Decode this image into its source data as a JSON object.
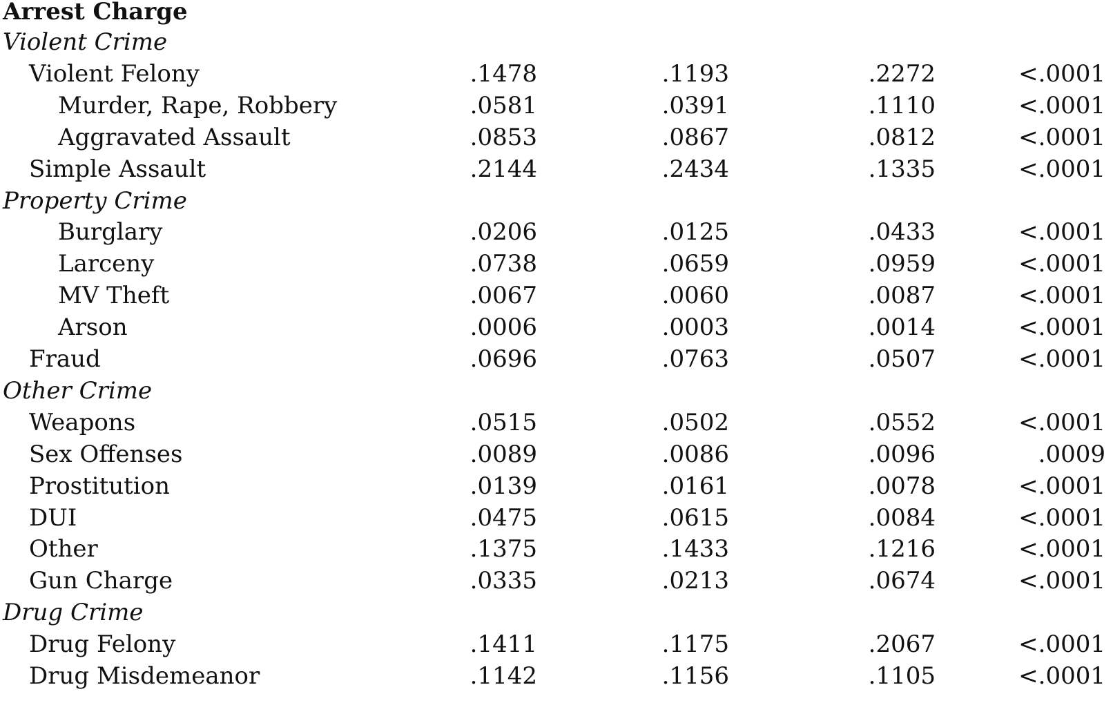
{
  "table": {
    "header": "Arrest Charge",
    "rows": [
      {
        "type": "section",
        "indent": 0,
        "label": "Violent Crime",
        "values": [
          "",
          "",
          "",
          ""
        ]
      },
      {
        "type": "item",
        "indent": 1,
        "label": "Violent Felony",
        "values": [
          ".1478",
          ".1193",
          ".2272",
          "<.0001"
        ]
      },
      {
        "type": "item",
        "indent": 2,
        "label": "Murder, Rape, Robbery",
        "values": [
          ".0581",
          ".0391",
          ".1110",
          "<.0001"
        ]
      },
      {
        "type": "item",
        "indent": 2,
        "label": "Aggravated Assault",
        "values": [
          ".0853",
          ".0867",
          ".0812",
          "<.0001"
        ]
      },
      {
        "type": "item",
        "indent": 1,
        "label": "Simple Assault",
        "values": [
          ".2144",
          ".2434",
          ".1335",
          "<.0001"
        ]
      },
      {
        "type": "section",
        "indent": 0,
        "label": "Property Crime",
        "values": [
          "",
          "",
          "",
          ""
        ]
      },
      {
        "type": "item",
        "indent": 2,
        "label": "Burglary",
        "values": [
          ".0206",
          ".0125",
          ".0433",
          "<.0001"
        ]
      },
      {
        "type": "item",
        "indent": 2,
        "label": "Larceny",
        "values": [
          ".0738",
          ".0659",
          ".0959",
          "<.0001"
        ]
      },
      {
        "type": "item",
        "indent": 2,
        "label": "MV Theft",
        "values": [
          ".0067",
          ".0060",
          ".0087",
          "<.0001"
        ]
      },
      {
        "type": "item",
        "indent": 2,
        "label": "Arson",
        "values": [
          ".0006",
          ".0003",
          ".0014",
          "<.0001"
        ]
      },
      {
        "type": "item",
        "indent": 1,
        "label": "Fraud",
        "values": [
          ".0696",
          ".0763",
          ".0507",
          "<.0001"
        ]
      },
      {
        "type": "section",
        "indent": 0,
        "label": "Other Crime",
        "values": [
          "",
          "",
          "",
          ""
        ]
      },
      {
        "type": "item",
        "indent": 1,
        "label": "Weapons",
        "values": [
          ".0515",
          ".0502",
          ".0552",
          "<.0001"
        ]
      },
      {
        "type": "item",
        "indent": 1,
        "label": "Sex Offenses",
        "values": [
          ".0089",
          ".0086",
          ".0096",
          ".0009"
        ]
      },
      {
        "type": "item",
        "indent": 1,
        "label": "Prostitution",
        "values": [
          ".0139",
          ".0161",
          ".0078",
          "<.0001"
        ]
      },
      {
        "type": "item",
        "indent": 1,
        "label": "DUI",
        "values": [
          ".0475",
          ".0615",
          ".0084",
          "<.0001"
        ]
      },
      {
        "type": "item",
        "indent": 1,
        "label": "Other",
        "values": [
          ".1375",
          ".1433",
          ".1216",
          "<.0001"
        ]
      },
      {
        "type": "item",
        "indent": 1,
        "label": "Gun Charge",
        "values": [
          ".0335",
          ".0213",
          ".0674",
          "<.0001"
        ]
      },
      {
        "type": "section",
        "indent": 0,
        "label": "Drug Crime",
        "values": [
          "",
          "",
          "",
          ""
        ]
      },
      {
        "type": "item",
        "indent": 1,
        "label": "Drug Felony",
        "values": [
          ".1411",
          ".1175",
          ".2067",
          "<.0001"
        ]
      },
      {
        "type": "item",
        "indent": 1,
        "label": "Drug Misdemeanor",
        "values": [
          ".1142",
          ".1156",
          ".1105",
          "<.0001"
        ]
      }
    ]
  }
}
